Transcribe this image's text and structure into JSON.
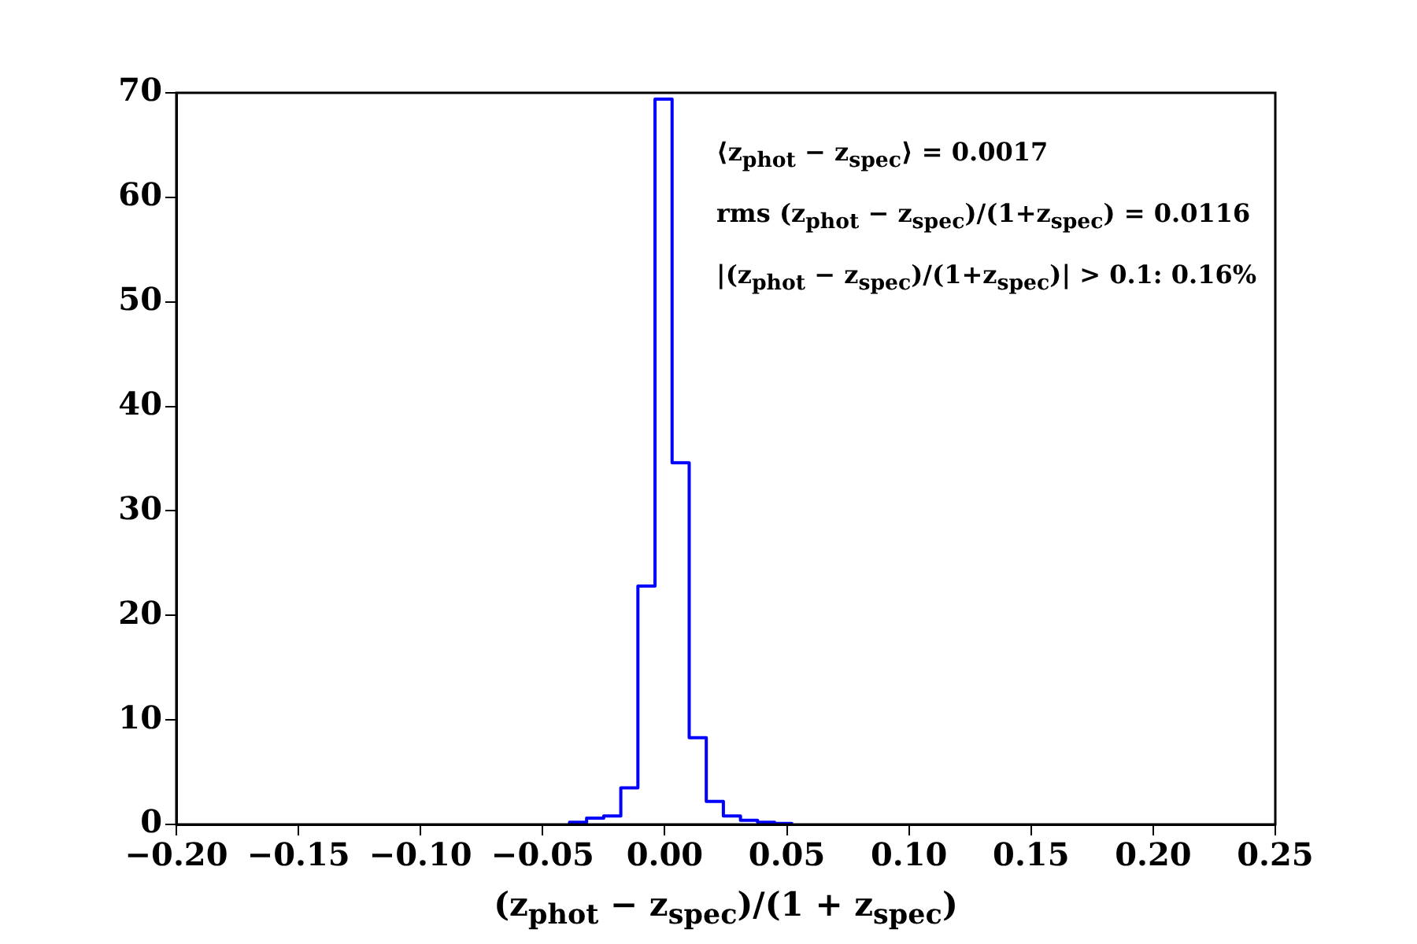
{
  "chart_data": {
    "type": "histogram",
    "xlabel": "(z$_{phot}$ − z$_{spec}$)/(1 + z$_{spec}$)",
    "bins": [
      -0.039,
      -0.032,
      -0.025,
      -0.018,
      -0.011,
      -0.004,
      0.003,
      0.01,
      0.017,
      0.024,
      0.031,
      0.038,
      0.045,
      0.052
    ],
    "values": [
      0.2,
      0.6,
      0.8,
      3.5,
      22.8,
      69.4,
      34.6,
      8.3,
      2.2,
      0.8,
      0.4,
      0.2,
      0.1
    ],
    "color": "#0000ff",
    "xlim": [
      -0.2,
      0.25
    ],
    "xticks": [
      {
        "value": -0.2,
        "label": "−0.20"
      },
      {
        "value": -0.15,
        "label": "−0.15"
      },
      {
        "value": -0.1,
        "label": "−0.10"
      },
      {
        "value": -0.05,
        "label": "−0.05"
      },
      {
        "value": 0,
        "label": "0.00"
      },
      {
        "value": 0.05,
        "label": "0.05"
      },
      {
        "value": 0.1,
        "label": "0.10"
      },
      {
        "value": 0.15,
        "label": "0.15"
      },
      {
        "value": 0.2,
        "label": "0.20"
      },
      {
        "value": 0.25,
        "label": "0.25"
      }
    ],
    "ylim": [
      0,
      70
    ],
    "yticks": [
      0,
      10,
      20,
      30,
      40,
      50,
      60,
      70
    ],
    "grid": false,
    "legend": false,
    "annotations": [
      "⟨z$_{phot}$ − z$_{spec}$⟩ = 0.0017",
      "rms (z$_{phot}$ − z$_{spec}$)/(1+z$_{spec}$) = 0.0116",
      "|(z$_{phot}$ − z$_{spec}$)/(1+z$_{spec}$)| > 0.1: 0.16%"
    ]
  }
}
